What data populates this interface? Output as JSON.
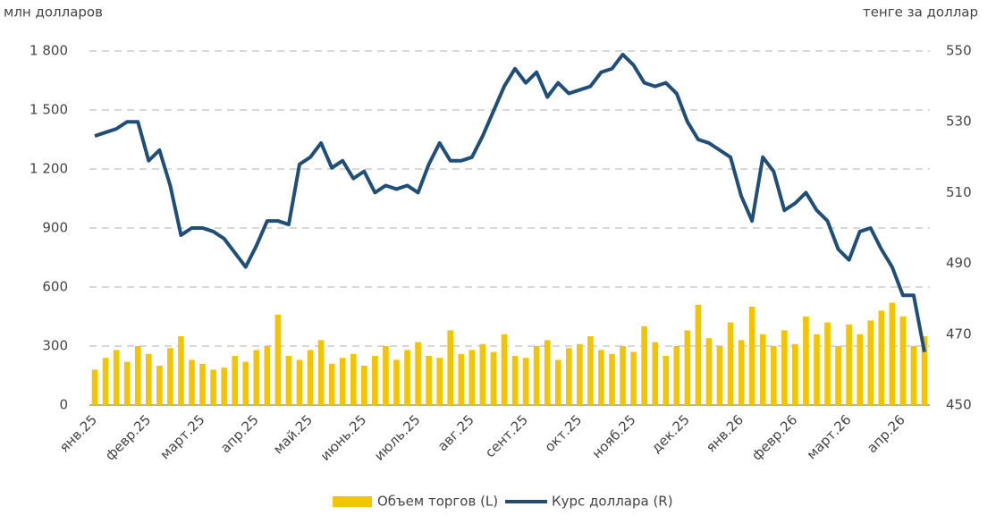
{
  "chart_data": {
    "type": "bar-line",
    "y_label": "млн долларов",
    "y2_label": "тенге за доллар",
    "categories": [
      "янв.25",
      null,
      null,
      null,
      null,
      "февр.25",
      null,
      null,
      null,
      null,
      "март.25",
      null,
      null,
      null,
      null,
      "апр.25",
      null,
      null,
      null,
      null,
      "май.25",
      null,
      null,
      null,
      null,
      "июнь.25",
      null,
      null,
      null,
      null,
      "июль.25",
      null,
      null,
      null,
      null,
      "авг.25",
      null,
      null,
      null,
      null,
      "сент.25",
      null,
      null,
      null,
      null,
      "окт.25",
      null,
      null,
      null,
      null,
      "нояб.25",
      null,
      null,
      null,
      null,
      "дек.25",
      null,
      null,
      null,
      null,
      "янв.26",
      null,
      null,
      null,
      null,
      "февр.26",
      null,
      null,
      null,
      null,
      "март.26",
      null,
      null,
      null,
      null,
      "апр.26",
      null,
      null
    ],
    "series": [
      {
        "name": "Объем торгов (L)",
        "color": "#f5c400",
        "axis": "y",
        "values": [
          180,
          240,
          280,
          220,
          300,
          260,
          200,
          290,
          350,
          230,
          210,
          180,
          190,
          250,
          220,
          280,
          300,
          460,
          250,
          230,
          280,
          330,
          210,
          240,
          260,
          200,
          250,
          300,
          230,
          280,
          320,
          250,
          240,
          380,
          260,
          280,
          310,
          270,
          360,
          250,
          240,
          300,
          330,
          230,
          290,
          310,
          350,
          280,
          260,
          300,
          270,
          400,
          320,
          250,
          300,
          380,
          510,
          340,
          300,
          420,
          330,
          500,
          360,
          300,
          380,
          310,
          450,
          360,
          420,
          300,
          410,
          360,
          430,
          480,
          520,
          450,
          300,
          350
        ]
      },
      {
        "name": "Курс доллара (R)",
        "color": "#1f4e79",
        "axis": "y2",
        "values": [
          526,
          527,
          528,
          530,
          530,
          519,
          522,
          512,
          498,
          500,
          500,
          499,
          497,
          493,
          489,
          495,
          502,
          502,
          501,
          518,
          520,
          524,
          517,
          519,
          514,
          516,
          510,
          512,
          511,
          512,
          510,
          518,
          524,
          519,
          519,
          520,
          526,
          533,
          540,
          545,
          541,
          544,
          537,
          541,
          538,
          539,
          540,
          544,
          545,
          549,
          546,
          541,
          540,
          541,
          538,
          530,
          525,
          524,
          522,
          520,
          509,
          502,
          520,
          516,
          505,
          507,
          510,
          505,
          502,
          494,
          491,
          499,
          500,
          494,
          489,
          481,
          481,
          465
        ]
      }
    ],
    "ylim": [
      0,
      1800
    ],
    "yticks": [
      0,
      300,
      600,
      900,
      {
        "value": 1200,
        "label": "1 200"
      },
      {
        "value": 1500,
        "label": "1 500"
      },
      {
        "value": 1800,
        "label": "1 800"
      }
    ],
    "y2lim": [
      450,
      550
    ],
    "y2ticks": [
      450,
      470,
      490,
      510,
      530,
      550
    ],
    "grid": true,
    "legend": "bottom"
  }
}
